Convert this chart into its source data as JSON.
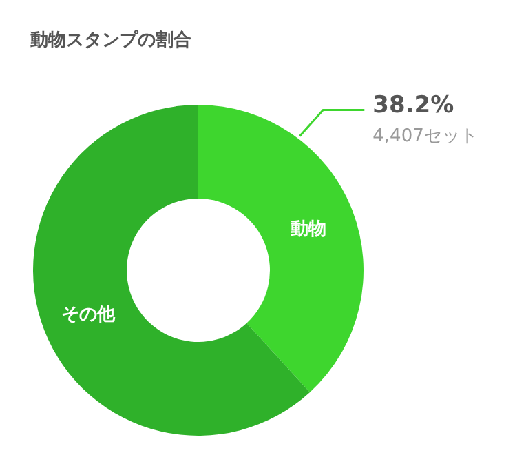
{
  "chart_data": {
    "type": "donut",
    "title": "動物スタンプの割合",
    "categories": [
      "動物",
      "その他"
    ],
    "values": [
      38.2,
      61.8
    ],
    "colors": [
      "#3ed62e",
      "#2fb12a"
    ],
    "value_labels": [
      "38.2%",
      null
    ],
    "annotations": [
      "4,407セット"
    ]
  }
}
